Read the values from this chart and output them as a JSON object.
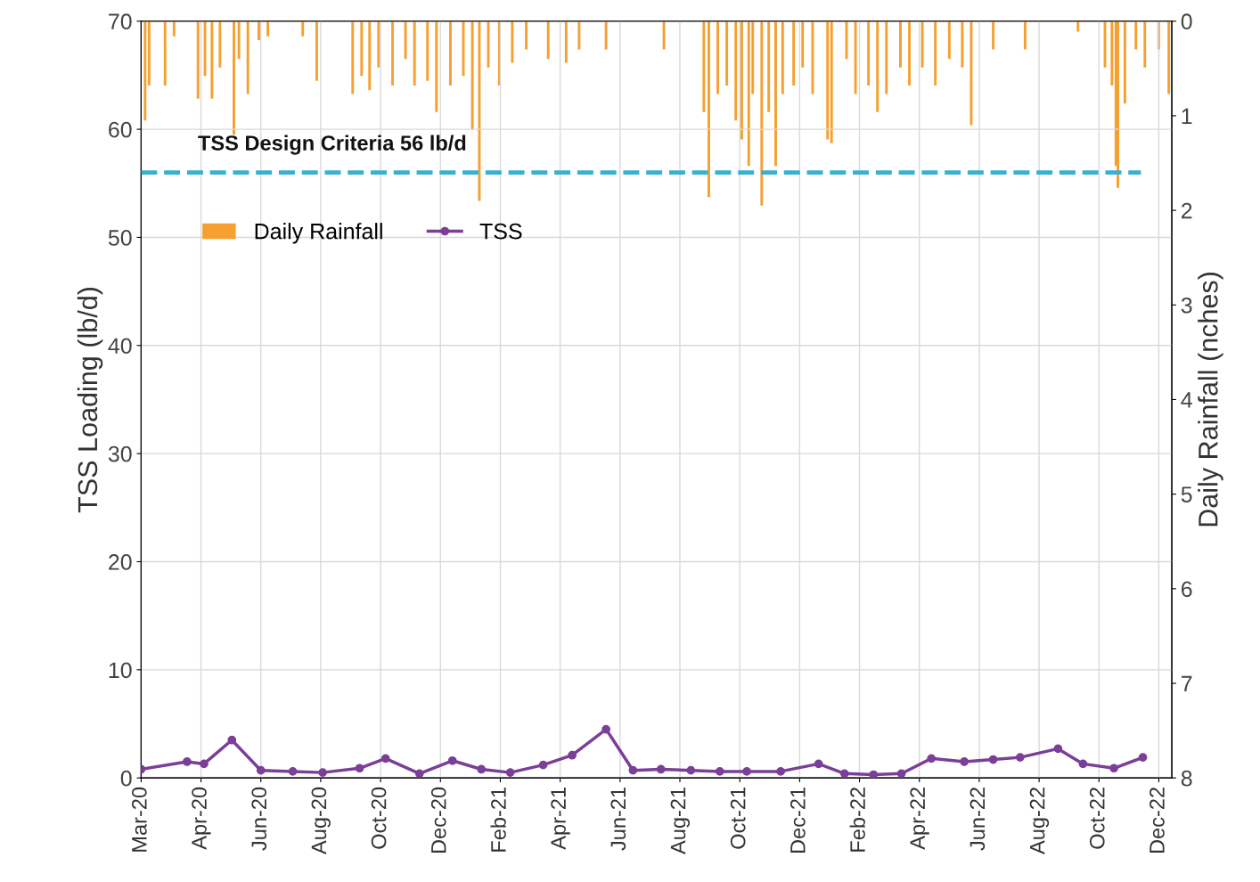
{
  "chart_data": {
    "type": "line",
    "ylabel": "TSS Loading (lb/d)",
    "y2label": "Daily Rainfall (nches)",
    "xlim": [
      "2020-03-01",
      "2022-12-29"
    ],
    "xticks": [
      {
        "value": "2020-03-01",
        "label": "Mar-20"
      },
      {
        "value": "2020-04-30",
        "label": "Apr-20"
      },
      {
        "value": "2020-06-29",
        "label": "Jun-20"
      },
      {
        "value": "2020-08-28",
        "label": "Aug-20"
      },
      {
        "value": "2020-10-27",
        "label": "Oct-20"
      },
      {
        "value": "2020-12-26",
        "label": "Dec-20"
      },
      {
        "value": "2021-02-24",
        "label": "Feb-21"
      },
      {
        "value": "2021-04-25",
        "label": "Apr-21"
      },
      {
        "value": "2021-06-24",
        "label": "Jun-21"
      },
      {
        "value": "2021-08-23",
        "label": "Aug-21"
      },
      {
        "value": "2021-10-22",
        "label": "Oct-21"
      },
      {
        "value": "2021-12-21",
        "label": "Dec-21"
      },
      {
        "value": "2022-02-19",
        "label": "Feb-22"
      },
      {
        "value": "2022-04-20",
        "label": "Apr-22"
      },
      {
        "value": "2022-06-19",
        "label": "Jun-22"
      },
      {
        "value": "2022-08-18",
        "label": "Aug-22"
      },
      {
        "value": "2022-10-17",
        "label": "Oct-22"
      },
      {
        "value": "2022-12-16",
        "label": "Dec-22"
      }
    ],
    "ylim": [
      0,
      70
    ],
    "yticks": [
      0,
      10,
      20,
      30,
      40,
      50,
      60,
      70
    ],
    "y2lim": [
      8,
      0
    ],
    "y2ticks": [
      0,
      1,
      2,
      3,
      4,
      5,
      6,
      7,
      8
    ],
    "grid": true,
    "legend": "top left",
    "marker": "circle",
    "line_style": "solid",
    "ref_lines": [
      {
        "axis": "y",
        "value": 56,
        "label": "TSS Design Criteria 56 lb/d",
        "color": "#3ab0d0",
        "line_style": "dashed"
      }
    ],
    "series": [
      {
        "name": "Daily Rainfall",
        "type": "bar",
        "axis": "y2",
        "color": "#f5a030",
        "x": [
          "2020-03-05",
          "2020-03-09",
          "2020-03-25",
          "2020-04-03",
          "2020-04-27",
          "2020-05-04",
          "2020-05-11",
          "2020-05-19",
          "2020-06-02",
          "2020-06-07",
          "2020-06-16",
          "2020-06-27",
          "2020-07-06",
          "2020-08-10",
          "2020-08-24",
          "2020-09-29",
          "2020-10-08",
          "2020-10-16",
          "2020-10-25",
          "2020-11-08",
          "2020-11-21",
          "2020-11-30",
          "2020-12-13",
          "2020-12-22",
          "2021-01-05",
          "2021-01-18",
          "2021-01-27",
          "2021-02-03",
          "2021-02-12",
          "2021-02-23",
          "2021-03-08",
          "2021-03-22",
          "2021-04-13",
          "2021-05-01",
          "2021-05-14",
          "2021-06-10",
          "2021-08-07",
          "2021-09-16",
          "2021-09-21",
          "2021-09-30",
          "2021-10-09",
          "2021-10-18",
          "2021-10-24",
          "2021-10-31",
          "2021-11-04",
          "2021-11-13",
          "2021-11-20",
          "2021-11-27",
          "2021-12-04",
          "2021-12-15",
          "2021-12-24",
          "2022-01-03",
          "2022-01-18",
          "2022-01-22",
          "2022-02-06",
          "2022-02-15",
          "2022-02-28",
          "2022-03-09",
          "2022-03-18",
          "2022-04-01",
          "2022-04-10",
          "2022-04-23",
          "2022-05-06",
          "2022-05-20",
          "2022-06-02",
          "2022-06-11",
          "2022-07-03",
          "2022-08-04",
          "2022-09-26",
          "2022-10-23",
          "2022-10-30",
          "2022-11-03",
          "2022-11-05",
          "2022-11-12",
          "2022-11-23",
          "2022-12-02",
          "2022-12-16",
          "2022-12-26"
        ],
        "values": [
          1.05,
          0.68,
          0.68,
          0.16,
          0.82,
          0.58,
          0.82,
          0.49,
          1.2,
          0.4,
          0.77,
          0.2,
          0.16,
          0.16,
          0.63,
          0.77,
          0.58,
          0.73,
          0.49,
          0.68,
          0.4,
          0.68,
          0.63,
          0.96,
          0.68,
          0.58,
          1.15,
          1.9,
          0.49,
          0.68,
          0.44,
          0.3,
          0.4,
          0.44,
          0.3,
          0.3,
          0.3,
          0.96,
          1.86,
          0.77,
          0.68,
          1.05,
          1.25,
          1.53,
          0.77,
          1.95,
          0.96,
          1.53,
          0.77,
          0.68,
          0.49,
          0.77,
          1.25,
          1.29,
          0.4,
          0.77,
          0.68,
          0.96,
          0.77,
          0.49,
          0.68,
          0.49,
          0.68,
          0.4,
          0.49,
          1.1,
          0.3,
          0.3,
          0.11,
          0.49,
          0.68,
          1.53,
          1.76,
          0.87,
          0.3,
          0.49,
          0.3,
          0.77
        ]
      },
      {
        "name": "TSS",
        "color": "#7b3f98",
        "x": [
          "2020-03-01",
          "2020-04-16",
          "2020-05-03",
          "2020-05-31",
          "2020-06-29",
          "2020-07-31",
          "2020-08-30",
          "2020-10-06",
          "2020-11-01",
          "2020-12-05",
          "2021-01-07",
          "2021-02-05",
          "2021-03-06",
          "2021-04-08",
          "2021-05-07",
          "2021-06-10",
          "2021-07-07",
          "2021-08-04",
          "2021-09-03",
          "2021-10-02",
          "2021-10-29",
          "2021-12-02",
          "2022-01-09",
          "2022-02-04",
          "2022-03-05",
          "2022-04-02",
          "2022-05-02",
          "2022-06-04",
          "2022-07-03",
          "2022-07-30",
          "2022-09-06",
          "2022-10-01",
          "2022-11-01",
          "2022-11-30"
        ],
        "values": [
          0.8,
          1.5,
          1.3,
          3.5,
          0.7,
          0.6,
          0.5,
          0.9,
          1.8,
          0.4,
          1.6,
          0.8,
          0.5,
          1.2,
          2.1,
          4.5,
          0.7,
          0.8,
          0.7,
          0.6,
          0.6,
          0.6,
          1.3,
          0.4,
          0.3,
          0.4,
          1.8,
          1.5,
          1.7,
          1.9,
          2.7,
          1.3,
          0.9,
          1.9
        ]
      }
    ]
  }
}
